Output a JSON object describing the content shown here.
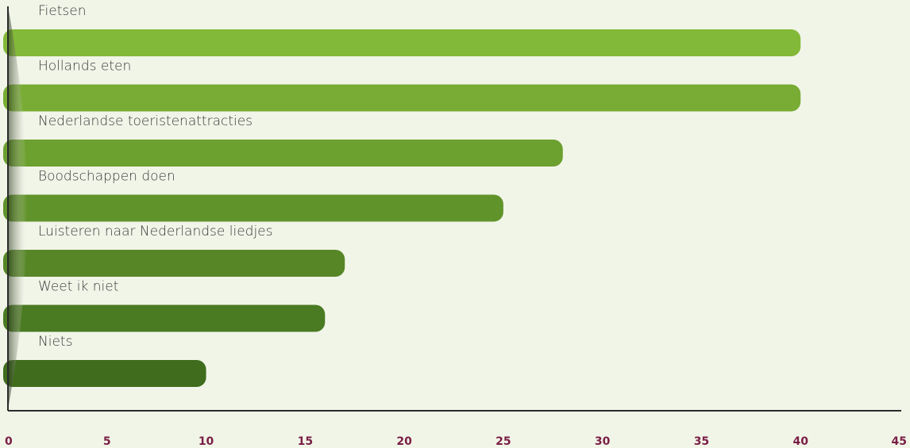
{
  "chart_data": {
    "type": "bar",
    "orientation": "horizontal",
    "title": "",
    "xlabel": "",
    "ylabel": "",
    "categories": [
      "Fietsen",
      "Hollands eten",
      "Nederlandse toeristenattracties",
      "Boodschappen doen",
      "Luisteren naar Nederlandse liedjes",
      "Weet ik niet",
      "Niets"
    ],
    "values": [
      40,
      40,
      28,
      25,
      17,
      16,
      10
    ],
    "xlim": [
      0,
      45
    ],
    "xticks": [
      "0",
      "5",
      "10",
      "15",
      "20",
      "25",
      "30",
      "35",
      "40",
      "45"
    ],
    "grid": false,
    "legend": "none",
    "colors": {
      "background": "#f1f5e8",
      "bar_top": "#83b938",
      "bar_bottom": "#3f6d1d",
      "axis": "#2b2b2b",
      "tick_label": "#7a1e45",
      "category_label": "#3a3a3a"
    }
  }
}
